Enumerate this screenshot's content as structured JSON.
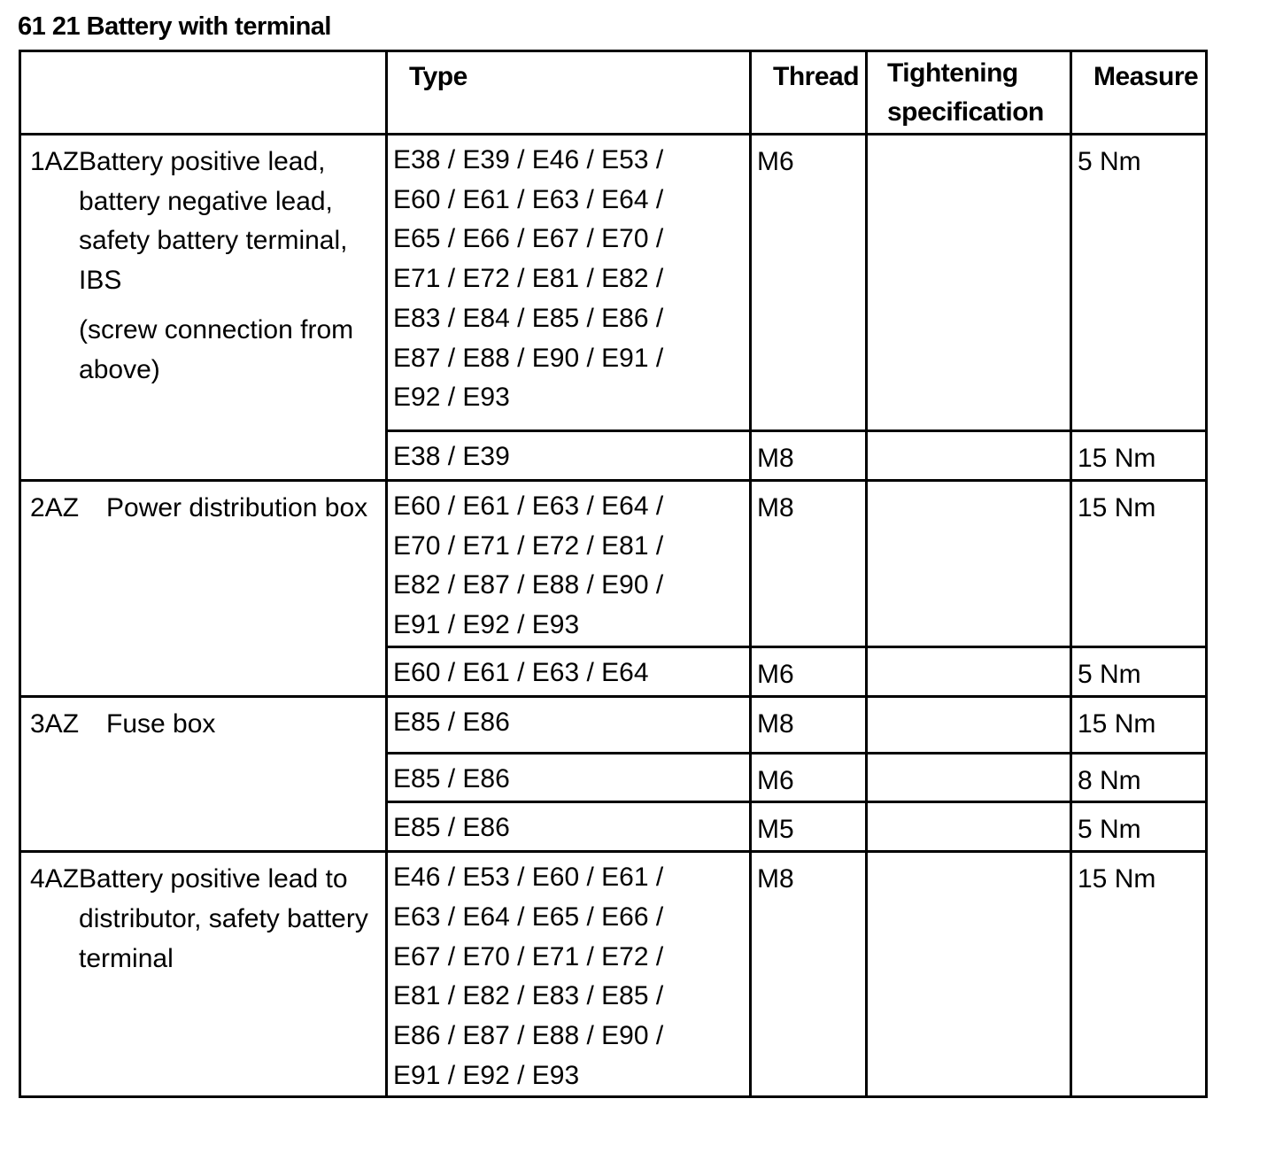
{
  "title": "61 21 Battery with terminal",
  "headers": [
    "",
    "Type",
    "Thread",
    "Tightening\nspecification",
    "Measure"
  ],
  "groups": [
    {
      "code": "1AZ",
      "description": [
        "Battery positive lead, battery negative lead, safety battery terminal, IBS",
        "(screw connection from above)"
      ],
      "rows": [
        {
          "type": "E38 / E39 / E46 / E53 /\nE60 / E61 / E63 / E64 /\nE65 / E66 / E67 / E70 /\nE71 / E72 / E81 / E82 /\nE83 / E84 / E85 / E86 /\nE87 / E88 / E90 / E91 /\nE92 / E93",
          "thread": "M6",
          "spec": "",
          "measure": "5 Nm"
        },
        {
          "type": "E38 / E39",
          "thread": "M8",
          "spec": "",
          "measure": "15 Nm"
        }
      ]
    },
    {
      "code": "2AZ",
      "description": [
        "Power distribution box"
      ],
      "rows": [
        {
          "type": "E60 / E61 / E63 / E64 /\nE70 / E71 / E72 / E81 /\nE82 / E87 / E88 / E90 /\nE91 / E92 / E93",
          "thread": "M8",
          "spec": "",
          "measure": "15 Nm"
        },
        {
          "type": "E60 / E61 / E63 / E64",
          "thread": "M6",
          "spec": "",
          "measure": "5 Nm"
        }
      ]
    },
    {
      "code": "3AZ",
      "description": [
        "Fuse box"
      ],
      "rows": [
        {
          "type": "E85 / E86",
          "thread": "M8",
          "spec": "",
          "measure": "15 Nm"
        },
        {
          "type": "E85 / E86",
          "thread": "M6",
          "spec": "",
          "measure": "8 Nm"
        },
        {
          "type": "E85 / E86",
          "thread": "M5",
          "spec": "",
          "measure": "5 Nm"
        }
      ]
    },
    {
      "code": "4AZ",
      "description": [
        "Battery positive lead to distributor, safety battery terminal"
      ],
      "rows": [
        {
          "type": "E46 / E53 / E60 / E61 /\nE63 / E64 / E65 / E66 /\nE67 / E70 / E71 / E72 /\nE81 / E82 / E83 / E85 /\nE86 / E87 / E88 / E90 /\nE91 / E92 / E93",
          "thread": "M8",
          "spec": "",
          "measure": "15 Nm"
        }
      ]
    }
  ]
}
